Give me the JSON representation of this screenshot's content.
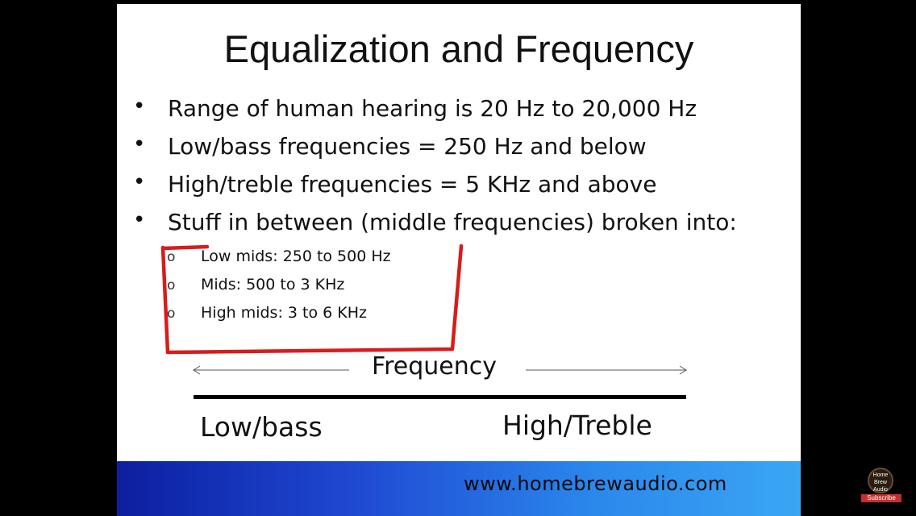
{
  "slide": {
    "title": "Equalization and Frequency",
    "bullets": [
      {
        "marker": "•",
        "text": "Range of human hearing is 20 Hz to 20,000 Hz"
      },
      {
        "marker": "•",
        "text": "Low/bass frequencies = 250 Hz and below"
      },
      {
        "marker": "•",
        "text": "High/treble frequencies = 5 KHz and above"
      },
      {
        "marker": "•",
        "text": "Stuff in between (middle frequencies) broken into:"
      }
    ],
    "sub_bullets": [
      {
        "marker": "o",
        "text": "Low mids: 250 to 500 Hz"
      },
      {
        "marker": "o",
        "text": "Mids: 500 to 3 KHz"
      },
      {
        "marker": "o",
        "text": "High mids: 3 to 6 KHz"
      }
    ],
    "frequency_axis": {
      "label": "Frequency",
      "low_label": "Low/bass",
      "high_label": "High/Treble"
    },
    "footer_url": "www.homebrewaudio.com"
  },
  "logo": {
    "text_line1": "Home",
    "text_line2": "Brew",
    "text_line3": "Audio",
    "subscribe_label": "Subscribe"
  },
  "colors": {
    "annotation_red": "#d81c1c",
    "footer_left": "#0c1f9f",
    "footer_right": "#3aa6f4",
    "subscribe_red": "#c4302b"
  }
}
